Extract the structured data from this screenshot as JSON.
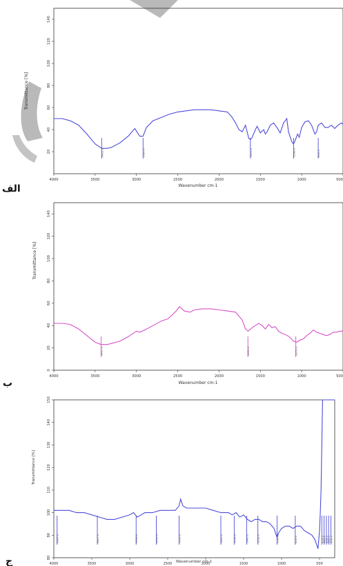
{
  "panels": [
    {
      "id": "alef",
      "panel_label": "الف",
      "color": "#4b4bd8",
      "chart_data": {
        "type": "line",
        "xlabel": "Wavenumber cm-1",
        "ylabel": "Transmittance [%]",
        "xlim": [
          4000,
          500
        ],
        "ylim": [
          0,
          150
        ],
        "xticks": [
          "4000",
          "3500",
          "3000",
          "2500",
          "2000",
          "1500",
          "1000",
          "500"
        ],
        "yticks": [
          "20",
          "40",
          "60",
          "80",
          "100",
          "120",
          "140"
        ],
        "series": [
          {
            "x": [
              4000,
              3900,
              3800,
              3700,
              3600,
              3500,
              3420,
              3350,
              3300,
              3200,
              3100,
              3020,
              2960,
              2920,
              2880,
              2800,
              2700,
              2600,
              2500,
              2400,
              2300,
              2200,
              2100,
              2000,
              1900,
              1850,
              1800,
              1760,
              1720,
              1680,
              1660,
              1640,
              1620,
              1600,
              1560,
              1540,
              1500,
              1460,
              1440,
              1420,
              1380,
              1340,
              1300,
              1260,
              1220,
              1180,
              1160,
              1120,
              1100,
              1080,
              1050,
              1030,
              1000,
              960,
              920,
              880,
              860,
              840,
              820,
              800,
              760,
              720,
              680,
              640,
              600,
              560,
              520,
              500
            ],
            "y": [
              50,
              50,
              48,
              44,
              36,
              27,
              23,
              23,
              24,
              28,
              34,
              41,
              34,
              34,
              42,
              48,
              51,
              54,
              56,
              57,
              58,
              58,
              58,
              57,
              56,
              52,
              46,
              40,
              38,
              44,
              38,
              32,
              31,
              33,
              40,
              43,
              37,
              40,
              36,
              38,
              44,
              46,
              42,
              37,
              46,
              50,
              38,
              29,
              27,
              30,
              36,
              33,
              42,
              47,
              48,
              44,
              40,
              36,
              38,
              44,
              46,
              42,
              42,
              44,
              41,
              44,
              46,
              45
            ]
          }
        ],
        "annotations": [
          {
            "x": 3421,
            "text": "3421.0"
          },
          {
            "x": 2920,
            "text": "2920.0"
          },
          {
            "x": 1621,
            "text": "1621.0"
          },
          {
            "x": 1098,
            "text": "1098.0"
          },
          {
            "x": 800,
            "text": "800.0"
          }
        ]
      }
    },
    {
      "id": "beh",
      "panel_label": "ب",
      "color": "#d64fc8",
      "chart_data": {
        "type": "line",
        "xlabel": "Wavenumber cm-1",
        "ylabel": "Transmittance [%]",
        "xlim": [
          4000,
          500
        ],
        "ylim": [
          0,
          150
        ],
        "xticks": [
          "4000",
          "3500",
          "3000",
          "2500",
          "2000",
          "1500",
          "1000",
          "500"
        ],
        "yticks": [
          "0",
          "20",
          "40",
          "60",
          "80",
          "100",
          "120",
          "140"
        ],
        "series": [
          {
            "x": [
              4000,
              3900,
              3800,
              3700,
              3600,
              3500,
              3430,
              3350,
              3200,
              3100,
              3000,
              2960,
              2900,
              2800,
              2700,
              2620,
              2560,
              2520,
              2480,
              2420,
              2350,
              2300,
              2200,
              2100,
              2000,
              1900,
              1800,
              1720,
              1680,
              1650,
              1600,
              1560,
              1520,
              1480,
              1440,
              1400,
              1360,
              1320,
              1280,
              1240,
              1200,
              1150,
              1100,
              1060,
              1020,
              980,
              940,
              900,
              860,
              820,
              780,
              740,
              700,
              660,
              620,
              580,
              540,
              500
            ],
            "y": [
              42,
              42,
              41,
              37,
              31,
              25,
              23,
              23,
              26,
              30,
              35,
              34,
              36,
              40,
              44,
              46,
              50,
              53,
              57,
              53,
              52,
              54,
              55,
              55,
              54,
              53,
              52,
              45,
              37,
              35,
              38,
              40,
              42,
              40,
              37,
              41,
              38,
              39,
              35,
              33,
              32,
              30,
              26,
              25,
              27,
              28,
              31,
              33,
              36,
              34,
              33,
              32,
              31,
              32,
              34,
              34,
              35,
              35
            ]
          }
        ],
        "annotations": [
          {
            "x": 3427,
            "text": "3427.0"
          },
          {
            "x": 1651,
            "text": "1651.0"
          },
          {
            "x": 1071,
            "text": "1071.0"
          }
        ]
      }
    },
    {
      "id": "jim",
      "panel_label": "ج",
      "color": "#4b4bd8",
      "chart_data": {
        "type": "line",
        "xlabel": "Wavenumber cm-1",
        "ylabel": "Transmittance [%]",
        "xlim": [
          4000,
          300
        ],
        "ylim": [
          80,
          150
        ],
        "xticks": [
          "4000",
          "3500",
          "3000",
          "2500",
          "2000",
          "1500",
          "1000",
          "500"
        ],
        "yticks": [
          "80",
          "90",
          "100",
          "110",
          "120",
          "130",
          "140",
          "150"
        ],
        "series": [
          {
            "x": [
              4000,
              3900,
              3800,
              3700,
              3600,
              3500,
              3400,
              3300,
              3200,
              3100,
              3000,
              2950,
              2900,
              2850,
              2800,
              2700,
              2600,
              2500,
              2400,
              2350,
              2330,
              2300,
              2250,
              2200,
              2100,
              2000,
              1900,
              1800,
              1700,
              1650,
              1600,
              1550,
              1500,
              1450,
              1400,
              1350,
              1300,
              1250,
              1200,
              1150,
              1100,
              1060,
              1040,
              1000,
              950,
              900,
              850,
              800,
              750,
              700,
              650,
              600,
              560,
              540,
              520,
              500,
              490,
              480,
              470,
              460,
              450,
              440,
              430,
              420,
              410,
              400,
              390,
              380,
              370,
              360,
              350,
              340,
              330,
              320,
              310,
              300
            ],
            "y": [
              101,
              101,
              101,
              100,
              100,
              99,
              98,
              97,
              97,
              98,
              99,
              100,
              98,
              99,
              100,
              100,
              101,
              101,
              101,
              103,
              106,
              103,
              102,
              102,
              102,
              102,
              101,
              100,
              100,
              99,
              100,
              98,
              99,
              97,
              96,
              97,
              97,
              96,
              96,
              95,
              93,
              89,
              91,
              93,
              94,
              94,
              93,
              94,
              94,
              92,
              91,
              90,
              88,
              86,
              84,
              92,
              100,
              110,
              130,
              150,
              150,
              150,
              150,
              150,
              150,
              150,
              150,
              150,
              150,
              150,
              150,
              150,
              150,
              150,
              150,
              150
            ]
          }
        ],
        "annotations": [
          {
            "x": 3957,
            "text": "3957.0"
          },
          {
            "x": 3427,
            "text": "3427.0"
          },
          {
            "x": 2916,
            "text": "2916.0"
          },
          {
            "x": 2650,
            "text": "2650.0"
          },
          {
            "x": 2350,
            "text": "2350.0"
          },
          {
            "x": 1800,
            "text": "1800.0"
          },
          {
            "x": 1624,
            "text": "1624.0"
          },
          {
            "x": 1460,
            "text": "1460.0"
          },
          {
            "x": 1312,
            "text": "1312.0"
          },
          {
            "x": 1060,
            "text": "1060.0"
          },
          {
            "x": 820,
            "text": "820.0"
          },
          {
            "x": 470,
            "text": "470.0"
          },
          {
            "x": 440,
            "text": "440.0"
          },
          {
            "x": 410,
            "text": "410.0"
          },
          {
            "x": 380,
            "text": "380.0"
          },
          {
            "x": 350,
            "text": "350.0"
          }
        ]
      }
    }
  ]
}
